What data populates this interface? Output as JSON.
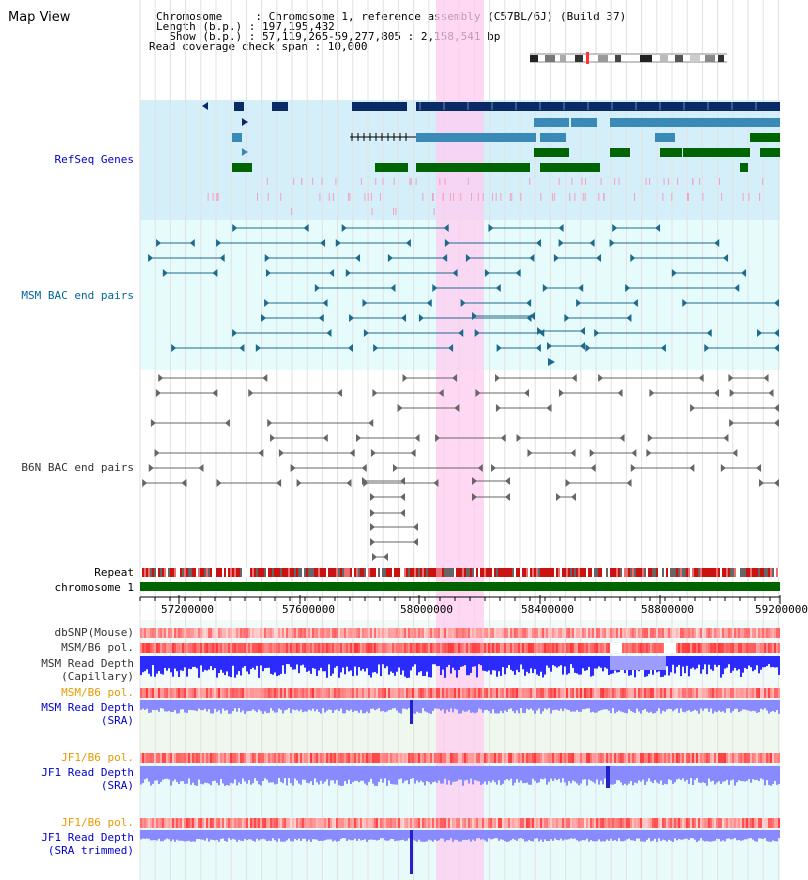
{
  "header": {
    "title": "Map View",
    "info_lines": [
      "Chromosome     : Chromosome 1, reference assembly (C57BL/6J) (Build 37)",
      "Length (b.p.) : 197,195,432",
      "  Show (b.p.) : 57,119,265-59,277,805 : 2,158,541 bp",
      "Read coverage check span : 10,000"
    ]
  },
  "tracks": {
    "refseq": "RefSeq Genes",
    "msm_bac": "MSM BAC end pairs",
    "b6n_bac": "B6N BAC end pairs",
    "repeat": "Repeat",
    "chromosome": "chromosome 1",
    "dbsnp": "dbSNP(Mouse)",
    "msm_b6_pol": "MSM/B6 pol.",
    "msm_read_depth_cap_1": "MSM Read Depth",
    "msm_read_depth_cap_2": "(Capillary)",
    "msm_b6_pol_2": "MSM/B6 pol.",
    "msm_read_depth_sra_1": "MSM Read Depth",
    "msm_read_depth_sra_2": "(SRA)",
    "jf1_b6_pol": "JF1/B6 pol.",
    "jf1_read_depth_sra_1": "JF1 Read Depth",
    "jf1_read_depth_sra_2": "(SRA)",
    "jf1_b6_pol_2": "JF1/B6 pol.",
    "jf1_read_depth_trim_1": "JF1 Read Depth",
    "jf1_read_depth_trim_2": "(SRA trimmed)"
  },
  "axis": {
    "ticks": [
      "57200000",
      "57600000",
      "58000000",
      "58400000",
      "58800000",
      "59200000"
    ]
  },
  "colors": {
    "refseq_label": "#0000cc",
    "msm_label": "#006699",
    "b6n_label": "#333333",
    "orange_label": "#e69a00",
    "blue_label": "#0000cc",
    "highlight": "#ffccf0",
    "refseq_bg": "#d4eefa",
    "msm_bg": "#e6fbfb",
    "gene_dark": "#0a2a66",
    "gene_mid": "#3a8ab8",
    "gene_green": "#006400",
    "depth_blue": "#2b2bff",
    "depth_light": "#8a8aff"
  }
}
